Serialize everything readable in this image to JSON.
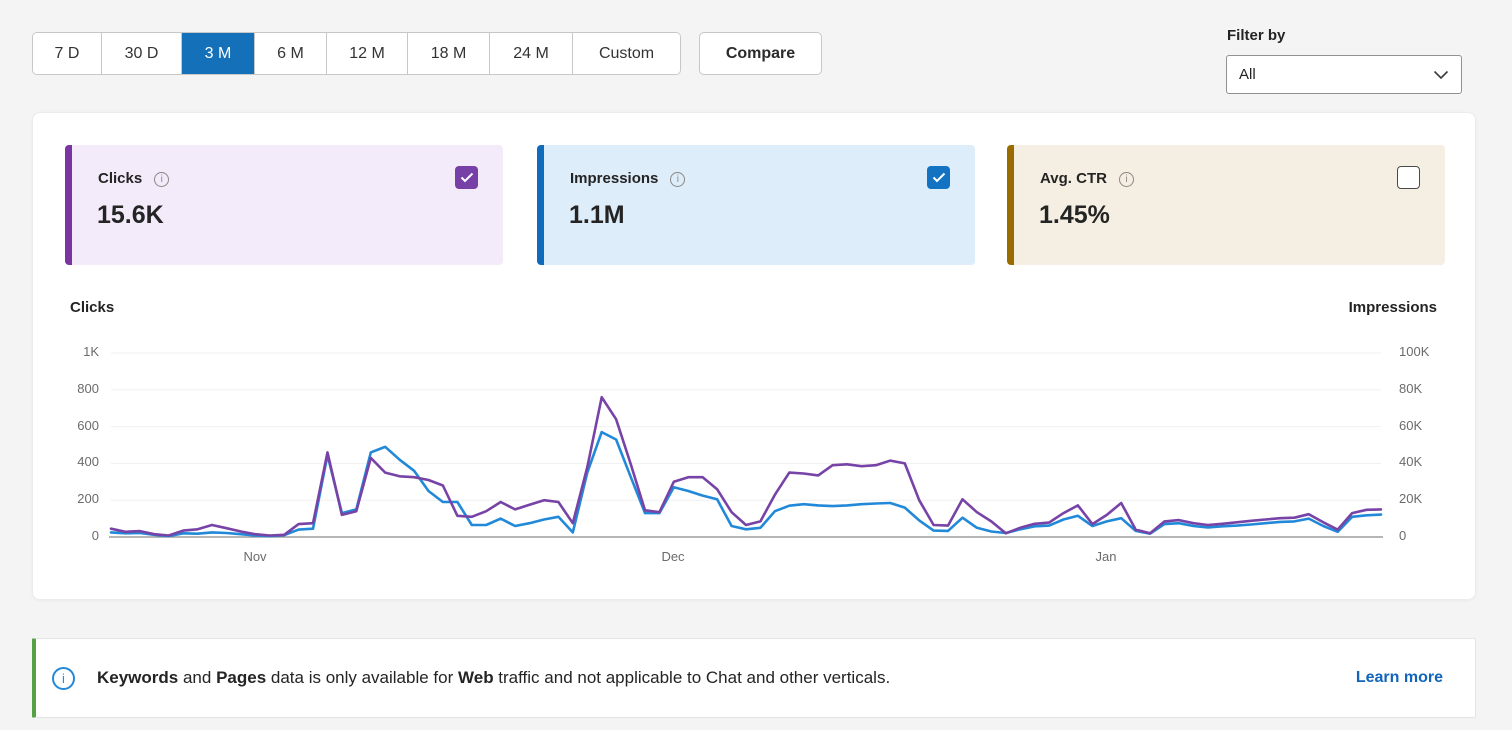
{
  "toolbar": {
    "ranges": [
      {
        "label": "7 D",
        "selected": false
      },
      {
        "label": "30 D",
        "selected": false
      },
      {
        "label": "3 M",
        "selected": true
      },
      {
        "label": "6 M",
        "selected": false
      },
      {
        "label": "12 M",
        "selected": false
      },
      {
        "label": "18 M",
        "selected": false
      },
      {
        "label": "24 M",
        "selected": false
      },
      {
        "label": "Custom",
        "selected": false
      }
    ],
    "selected_color": "#1470b8",
    "compare_label": "Compare",
    "filter": {
      "label": "Filter by",
      "selected_option": "All"
    }
  },
  "cards": [
    {
      "title": "Clicks",
      "value": "15.6K",
      "checked": true,
      "accent": "#7a35a3",
      "bg": "#f3ebf9",
      "check_color": "#7740a6"
    },
    {
      "title": "Impressions",
      "value": "1.1M",
      "checked": true,
      "accent": "#0f6cbd",
      "bg": "#ddedfa",
      "check_color": "#1373c2"
    },
    {
      "title": "Avg. CTR",
      "value": "1.45%",
      "checked": false,
      "accent": "#9a6c00",
      "bg": "#f4efe2",
      "check_color": ""
    }
  ],
  "chart_data": {
    "type": "line",
    "grid": true,
    "legend_position": "none",
    "left_axis": {
      "title": "Clicks",
      "ticks": [
        "0",
        "200",
        "400",
        "600",
        "800",
        "1K"
      ],
      "range": [
        0,
        1000
      ]
    },
    "right_axis": {
      "title": "Impressions",
      "ticks": [
        "0",
        "20K",
        "40K",
        "60K",
        "80K",
        "100K"
      ],
      "range": [
        0,
        100000
      ]
    },
    "x_ticks": [
      "Nov",
      "Dec",
      "Jan"
    ],
    "series": [
      {
        "name": "Clicks",
        "axis": "left",
        "color": "#7743a6",
        "unit": "clicks",
        "values": [
          45,
          28,
          32,
          15,
          8,
          35,
          42,
          65,
          48,
          30,
          15,
          8,
          12,
          70,
          75,
          460,
          120,
          140,
          430,
          350,
          330,
          325,
          310,
          280,
          115,
          110,
          140,
          190,
          150,
          175,
          200,
          190,
          75,
          380,
          760,
          640,
          400,
          145,
          135,
          300,
          325,
          325,
          260,
          135,
          65,
          85,
          230,
          350,
          345,
          335,
          390,
          395,
          385,
          390,
          415,
          400,
          200,
          65,
          62,
          205,
          135,
          85,
          20,
          50,
          72,
          78,
          130,
          172,
          70,
          120,
          185,
          40,
          20,
          85,
          92,
          75,
          65,
          72,
          80,
          88,
          95,
          102,
          105,
          124,
          80,
          40,
          130,
          148,
          150
        ]
      },
      {
        "name": "Impressions",
        "axis": "right",
        "color": "#2289d8",
        "unit": "thousands",
        "values": [
          2.5,
          2,
          2.2,
          1.2,
          0.5,
          2,
          1.8,
          2.5,
          2.2,
          1.5,
          0.8,
          0.5,
          1,
          4,
          4.5,
          44.5,
          13,
          15,
          46,
          49,
          42,
          36,
          25,
          19,
          19,
          6.5,
          6.5,
          10,
          6,
          7.5,
          9.5,
          11,
          2.5,
          35,
          57,
          53,
          33,
          13,
          13,
          27,
          25,
          22.5,
          20.5,
          6,
          4.2,
          5,
          14,
          17,
          17.8,
          17.2,
          16.8,
          17.2,
          17.8,
          18.2,
          18.5,
          16,
          9,
          3.5,
          3.3,
          10.5,
          5,
          3,
          2.2,
          4.2,
          5.8,
          6.2,
          9.5,
          11.5,
          6,
          8.5,
          10.2,
          3.3,
          1.8,
          7,
          7.5,
          6,
          5.2,
          5.8,
          6.2,
          6.8,
          7.5,
          8.2,
          8.5,
          10,
          6,
          2.8,
          11,
          11.8,
          12.2
        ]
      }
    ]
  },
  "banner": {
    "segments": [
      {
        "text": "Keywords",
        "bold": true
      },
      {
        "text": " and ",
        "bold": false
      },
      {
        "text": "Pages",
        "bold": true
      },
      {
        "text": " data is only available for ",
        "bold": false
      },
      {
        "text": "Web",
        "bold": true
      },
      {
        "text": " traffic and not applicable to Chat and other verticals.",
        "bold": false
      }
    ],
    "link_label": "Learn more",
    "accent_color": "#55a245",
    "info_color": "#2488d8"
  }
}
